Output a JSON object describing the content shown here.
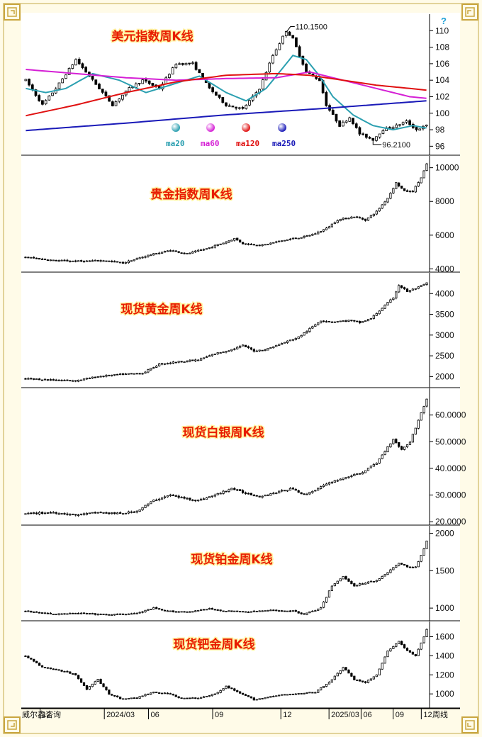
{
  "colors": {
    "frame_bg": "#fffbe8",
    "corner": "#c9a640",
    "title": "#e81c00",
    "candle": "#000000",
    "ma20": "#2a9fb0",
    "ma60": "#d51fd5",
    "ma120": "#e01010",
    "ma250": "#1a1ab8"
  },
  "chart_data": [
    {
      "type": "candlestick",
      "title": "美元指数周K线",
      "yticks": [
        96,
        98,
        100,
        102,
        104,
        106,
        108,
        110
      ],
      "yrange": [
        95,
        112
      ],
      "annotations": {
        "high": "110.1500",
        "low": "96.2100"
      },
      "moving_averages": [
        {
          "name": "ma20",
          "color": "#2a9fb0"
        },
        {
          "name": "ma60",
          "color": "#d51fd5"
        },
        {
          "name": "ma120",
          "color": "#e01010"
        },
        {
          "name": "ma250",
          "color": "#1a1ab8"
        }
      ],
      "anchors": [
        [
          0,
          104
        ],
        [
          5,
          101
        ],
        [
          9,
          103
        ],
        [
          15,
          106.5
        ],
        [
          20,
          104
        ],
        [
          26,
          101
        ],
        [
          31,
          103
        ],
        [
          35,
          104
        ],
        [
          40,
          103
        ],
        [
          45,
          106
        ],
        [
          50,
          106
        ],
        [
          55,
          103
        ],
        [
          60,
          101
        ],
        [
          65,
          100.5
        ],
        [
          70,
          103
        ],
        [
          74,
          107
        ],
        [
          78,
          110
        ],
        [
          80,
          109
        ],
        [
          84,
          105
        ],
        [
          88,
          104
        ],
        [
          90,
          101
        ],
        [
          94,
          98.5
        ],
        [
          97,
          99.5
        ],
        [
          100,
          97.5
        ],
        [
          104,
          96.8
        ],
        [
          107,
          98
        ],
        [
          111,
          98.5
        ],
        [
          114,
          99
        ],
        [
          117,
          98
        ],
        [
          120,
          98.5
        ]
      ],
      "ma_values": {
        "ma20": [
          [
            0,
            103
          ],
          [
            6,
            102.5
          ],
          [
            12,
            103
          ],
          [
            20,
            104.8
          ],
          [
            28,
            104
          ],
          [
            36,
            102.5
          ],
          [
            44,
            103.5
          ],
          [
            52,
            104.5
          ],
          [
            60,
            102.5
          ],
          [
            66,
            101.5
          ],
          [
            72,
            103
          ],
          [
            76,
            105
          ],
          [
            80,
            107
          ],
          [
            84,
            106.5
          ],
          [
            88,
            104.5
          ],
          [
            92,
            102
          ],
          [
            98,
            99.8
          ],
          [
            104,
            98.5
          ],
          [
            110,
            98
          ],
          [
            116,
            98.5
          ],
          [
            120,
            98.2
          ]
        ],
        "ma60": [
          [
            0,
            105.3
          ],
          [
            15,
            104.8
          ],
          [
            30,
            104.3
          ],
          [
            45,
            104
          ],
          [
            60,
            104.2
          ],
          [
            75,
            104.3
          ],
          [
            85,
            105
          ],
          [
            95,
            104
          ],
          [
            105,
            103
          ],
          [
            115,
            102
          ],
          [
            120,
            101.8
          ]
        ],
        "ma120": [
          [
            0,
            99.7
          ],
          [
            15,
            101
          ],
          [
            30,
            102.5
          ],
          [
            45,
            103.8
          ],
          [
            60,
            104.6
          ],
          [
            75,
            104.8
          ],
          [
            85,
            104.6
          ],
          [
            95,
            104
          ],
          [
            105,
            103.4
          ],
          [
            115,
            103
          ],
          [
            120,
            102.8
          ]
        ],
        "ma250": [
          [
            0,
            97.9
          ],
          [
            30,
            98.8
          ],
          [
            60,
            99.8
          ],
          [
            90,
            100.6
          ],
          [
            120,
            101.5
          ]
        ]
      }
    },
    {
      "type": "candlestick",
      "title": "贵金指数周K线",
      "yticks": [
        4000,
        6000,
        8000,
        10000
      ],
      "yrange": [
        3850,
        10700
      ],
      "anchors": [
        [
          0,
          4700
        ],
        [
          10,
          4500
        ],
        [
          20,
          4450
        ],
        [
          28,
          4500
        ],
        [
          35,
          4350
        ],
        [
          44,
          4800
        ],
        [
          52,
          5100
        ],
        [
          58,
          4900
        ],
        [
          65,
          5200
        ],
        [
          72,
          5600
        ],
        [
          75,
          5800
        ],
        [
          78,
          5500
        ],
        [
          85,
          5400
        ],
        [
          90,
          5600
        ],
        [
          96,
          5800
        ],
        [
          100,
          5900
        ],
        [
          104,
          6100
        ],
        [
          108,
          6400
        ],
        [
          112,
          6900
        ],
        [
          118,
          7100
        ],
        [
          122,
          6900
        ],
        [
          126,
          7400
        ],
        [
          130,
          8200
        ],
        [
          133,
          9100
        ],
        [
          136,
          8600
        ],
        [
          139,
          8600
        ],
        [
          142,
          9400
        ],
        [
          144,
          10200
        ]
      ]
    },
    {
      "type": "candlestick",
      "title": "现货黄金周K线",
      "yticks": [
        2000,
        2500,
        3000,
        3500,
        4000
      ],
      "yrange": [
        1750,
        4500
      ],
      "anchors": [
        [
          0,
          1950
        ],
        [
          10,
          1920
        ],
        [
          18,
          1900
        ],
        [
          26,
          2000
        ],
        [
          34,
          2050
        ],
        [
          42,
          2080
        ],
        [
          48,
          2300
        ],
        [
          54,
          2350
        ],
        [
          62,
          2400
        ],
        [
          68,
          2550
        ],
        [
          74,
          2650
        ],
        [
          78,
          2750
        ],
        [
          82,
          2620
        ],
        [
          86,
          2650
        ],
        [
          92,
          2800
        ],
        [
          98,
          2950
        ],
        [
          102,
          3150
        ],
        [
          106,
          3350
        ],
        [
          110,
          3320
        ],
        [
          116,
          3350
        ],
        [
          120,
          3300
        ],
        [
          124,
          3400
        ],
        [
          128,
          3650
        ],
        [
          132,
          3900
        ],
        [
          134,
          4200
        ],
        [
          137,
          4050
        ],
        [
          141,
          4150
        ],
        [
          144,
          4250
        ]
      ]
    },
    {
      "type": "candlestick",
      "title": "现货白银周K线",
      "yticks": [
        "20.0000",
        "30.0000",
        "40.0000",
        "50.0000",
        "60.0000"
      ],
      "yrange": [
        19,
        70
      ],
      "anchors": [
        [
          0,
          23
        ],
        [
          10,
          23.5
        ],
        [
          18,
          22.5
        ],
        [
          26,
          23.5
        ],
        [
          34,
          23
        ],
        [
          40,
          24
        ],
        [
          46,
          28
        ],
        [
          52,
          30
        ],
        [
          56,
          29
        ],
        [
          62,
          28
        ],
        [
          68,
          30
        ],
        [
          74,
          32.5
        ],
        [
          78,
          31
        ],
        [
          84,
          29.5
        ],
        [
          90,
          31
        ],
        [
          96,
          32.5
        ],
        [
          100,
          30
        ],
        [
          104,
          32
        ],
        [
          110,
          35
        ],
        [
          116,
          37
        ],
        [
          120,
          38
        ],
        [
          126,
          42
        ],
        [
          130,
          48
        ],
        [
          132,
          51
        ],
        [
          135,
          47
        ],
        [
          138,
          50
        ],
        [
          141,
          58
        ],
        [
          144,
          66
        ]
      ]
    },
    {
      "type": "candlestick",
      "title": "现货铂金周K线",
      "yticks": [
        1000,
        1500,
        2000
      ],
      "yrange": [
        840,
        2100
      ],
      "anchors": [
        [
          0,
          960
        ],
        [
          10,
          920
        ],
        [
          20,
          930
        ],
        [
          30,
          910
        ],
        [
          40,
          930
        ],
        [
          46,
          1000
        ],
        [
          50,
          960
        ],
        [
          58,
          950
        ],
        [
          66,
          990
        ],
        [
          72,
          960
        ],
        [
          80,
          950
        ],
        [
          88,
          970
        ],
        [
          96,
          960
        ],
        [
          100,
          920
        ],
        [
          106,
          1000
        ],
        [
          110,
          1300
        ],
        [
          114,
          1420
        ],
        [
          118,
          1300
        ],
        [
          122,
          1340
        ],
        [
          126,
          1370
        ],
        [
          130,
          1480
        ],
        [
          134,
          1600
        ],
        [
          137,
          1550
        ],
        [
          140,
          1550
        ],
        [
          142,
          1700
        ],
        [
          144,
          1900
        ]
      ]
    },
    {
      "type": "candlestick",
      "title": "现货钯金周K线",
      "yticks": [
        1000,
        1200,
        1400,
        1600
      ],
      "yrange": [
        860,
        1760
      ],
      "anchors": [
        [
          0,
          1400
        ],
        [
          6,
          1280
        ],
        [
          12,
          1250
        ],
        [
          18,
          1200
        ],
        [
          22,
          1050
        ],
        [
          26,
          1150
        ],
        [
          30,
          1000
        ],
        [
          34,
          950
        ],
        [
          40,
          960
        ],
        [
          46,
          1020
        ],
        [
          52,
          1000
        ],
        [
          56,
          950
        ],
        [
          62,
          960
        ],
        [
          68,
          1000
        ],
        [
          72,
          1080
        ],
        [
          76,
          1020
        ],
        [
          82,
          940
        ],
        [
          86,
          960
        ],
        [
          92,
          990
        ],
        [
          98,
          1000
        ],
        [
          104,
          1020
        ],
        [
          110,
          1150
        ],
        [
          114,
          1280
        ],
        [
          118,
          1150
        ],
        [
          122,
          1120
        ],
        [
          126,
          1200
        ],
        [
          130,
          1450
        ],
        [
          134,
          1550
        ],
        [
          137,
          1450
        ],
        [
          140,
          1400
        ],
        [
          143,
          1600
        ],
        [
          144,
          1680
        ]
      ]
    }
  ],
  "xaxis": {
    "labels": [
      {
        "text": "12",
        "pos": 0.04
      },
      {
        "text": "2024/03",
        "pos": 0.2
      },
      {
        "text": "06",
        "pos": 0.31
      },
      {
        "text": "09",
        "pos": 0.47
      },
      {
        "text": "12",
        "pos": 0.64
      },
      {
        "text": "2025/03",
        "pos": 0.76
      },
      {
        "text": "06",
        "pos": 0.84
      },
      {
        "text": "09",
        "pos": 0.92
      },
      {
        "text": "12",
        "pos": 0.99
      }
    ],
    "source": "威尔鑫咨询",
    "period": "周线"
  },
  "question_mark": "?"
}
